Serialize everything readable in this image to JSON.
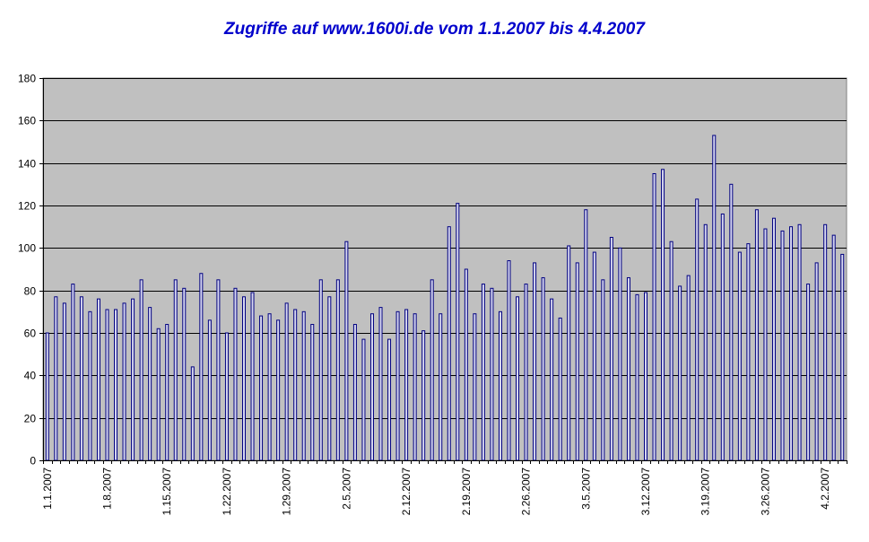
{
  "chart_data": {
    "type": "bar",
    "title": "Zugriffe auf www.1600i.de vom 1.1.2007 bis 4.4.2007",
    "xlabel": "",
    "ylabel": "",
    "ylim": [
      0,
      180
    ],
    "yticks": [
      0,
      20,
      40,
      60,
      80,
      100,
      120,
      140,
      160,
      180
    ],
    "grid": true,
    "legend": "none",
    "colors": {
      "bar_fill": "#d8d8f0",
      "bar_stroke": "#000080",
      "plot_bg": "#c0c0c0",
      "title": "#0000cc"
    },
    "x_tick_labels": [
      "1.1.2007",
      "1.8.2007",
      "1.15.2007",
      "1.22.2007",
      "1.29.2007",
      "2.5.2007",
      "2.12.2007",
      "2.19.2007",
      "2.26.2007",
      "3.5.2007",
      "3.12.2007",
      "3.19.2007",
      "3.26.2007",
      "4.2.2007"
    ],
    "categories": [
      "1.1.2007",
      "1.2.2007",
      "1.3.2007",
      "1.4.2007",
      "1.5.2007",
      "1.6.2007",
      "1.7.2007",
      "1.8.2007",
      "1.9.2007",
      "1.10.2007",
      "1.11.2007",
      "1.12.2007",
      "1.13.2007",
      "1.14.2007",
      "1.15.2007",
      "1.16.2007",
      "1.17.2007",
      "1.18.2007",
      "1.19.2007",
      "1.20.2007",
      "1.21.2007",
      "1.22.2007",
      "1.23.2007",
      "1.24.2007",
      "1.25.2007",
      "1.26.2007",
      "1.27.2007",
      "1.28.2007",
      "1.29.2007",
      "1.30.2007",
      "1.31.2007",
      "2.1.2007",
      "2.2.2007",
      "2.3.2007",
      "2.4.2007",
      "2.5.2007",
      "2.6.2007",
      "2.7.2007",
      "2.8.2007",
      "2.9.2007",
      "2.10.2007",
      "2.11.2007",
      "2.12.2007",
      "2.13.2007",
      "2.14.2007",
      "2.15.2007",
      "2.16.2007",
      "2.17.2007",
      "2.18.2007",
      "2.19.2007",
      "2.20.2007",
      "2.21.2007",
      "2.22.2007",
      "2.23.2007",
      "2.24.2007",
      "2.25.2007",
      "2.26.2007",
      "2.27.2007",
      "2.28.2007",
      "3.1.2007",
      "3.2.2007",
      "3.3.2007",
      "3.4.2007",
      "3.5.2007",
      "3.6.2007",
      "3.7.2007",
      "3.8.2007",
      "3.9.2007",
      "3.10.2007",
      "3.11.2007",
      "3.12.2007",
      "3.13.2007",
      "3.14.2007",
      "3.15.2007",
      "3.16.2007",
      "3.17.2007",
      "3.18.2007",
      "3.19.2007",
      "3.20.2007",
      "3.21.2007",
      "3.22.2007",
      "3.23.2007",
      "3.24.2007",
      "3.25.2007",
      "3.26.2007",
      "3.27.2007",
      "3.28.2007",
      "3.29.2007",
      "3.30.2007",
      "3.31.2007",
      "4.1.2007",
      "4.2.2007",
      "4.3.2007",
      "4.4.2007"
    ],
    "values": [
      60,
      77,
      74,
      83,
      77,
      70,
      76,
      71,
      71,
      74,
      76,
      85,
      72,
      62,
      64,
      85,
      81,
      44,
      88,
      66,
      85,
      60,
      81,
      77,
      79,
      68,
      69,
      66,
      74,
      71,
      70,
      64,
      85,
      77,
      85,
      103,
      64,
      57,
      69,
      72,
      57,
      70,
      71,
      69,
      61,
      85,
      69,
      110,
      121,
      90,
      69,
      83,
      81,
      70,
      94,
      77,
      83,
      93,
      86,
      76,
      67,
      101,
      93,
      118,
      98,
      85,
      105,
      100,
      86,
      78,
      79,
      135,
      137,
      103,
      82,
      87,
      123,
      111,
      153,
      116,
      130,
      98,
      102,
      118,
      109,
      114,
      108,
      110,
      111,
      83,
      93,
      111,
      106,
      97
    ]
  }
}
